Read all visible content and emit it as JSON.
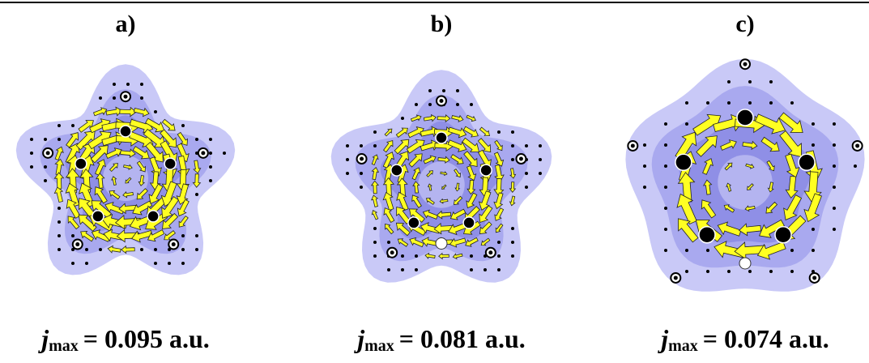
{
  "panels": [
    {
      "label": "a)",
      "symbol": "j",
      "subscript": "max",
      "caption": "= 0.095 a.u."
    },
    {
      "label": "b)",
      "symbol": "j",
      "subscript": "max",
      "caption": "= 0.081 a.u."
    },
    {
      "label": "c)",
      "symbol": "j",
      "subscript": "max",
      "caption": "= 0.074 a.u."
    }
  ]
}
